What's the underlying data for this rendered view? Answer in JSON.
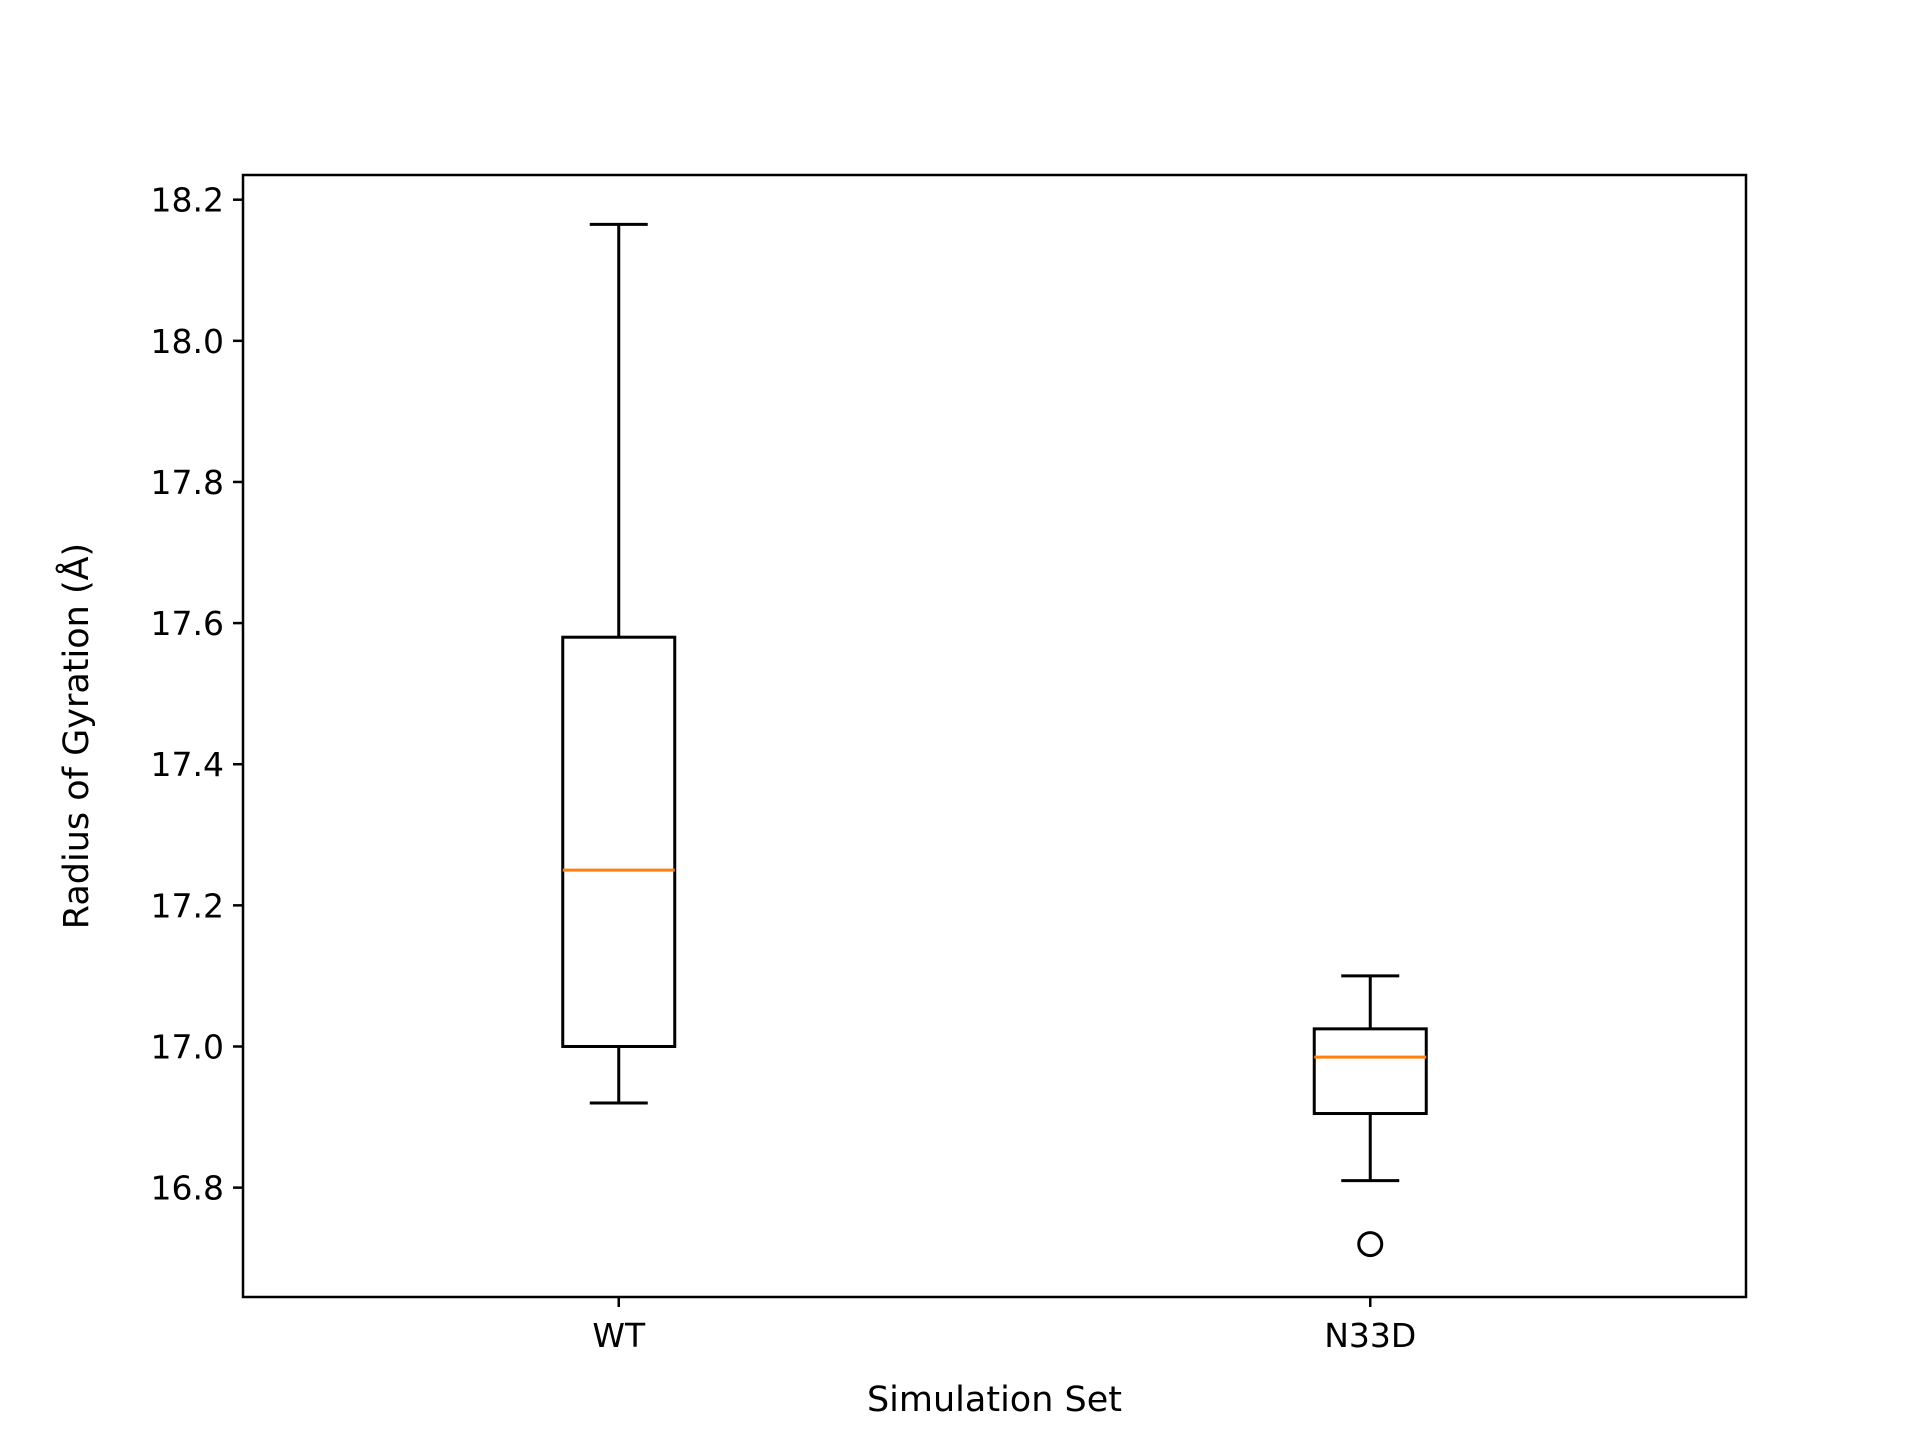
{
  "chart_data": {
    "type": "box",
    "title": "",
    "xlabel": "Simulation Set",
    "ylabel": "Radius of Gyration (Å)",
    "ylim": [
      16.645,
      18.235
    ],
    "yticks": [
      16.8,
      17.0,
      17.2,
      17.4,
      17.6,
      17.8,
      18.0,
      18.2
    ],
    "ytick_labels": [
      "16.8",
      "17.0",
      "17.2",
      "17.4",
      "17.6",
      "17.8",
      "18.0",
      "18.2"
    ],
    "grid": false,
    "categories": [
      "WT",
      "N33D"
    ],
    "boxes": [
      {
        "name": "WT",
        "whisker_low": 16.92,
        "q1": 17.0,
        "median": 17.25,
        "q3": 17.58,
        "whisker_high": 18.165,
        "outliers": []
      },
      {
        "name": "N33D",
        "whisker_low": 16.81,
        "q1": 16.905,
        "median": 16.985,
        "q3": 17.025,
        "whisker_high": 17.1,
        "outliers": [
          16.72
        ]
      }
    ],
    "colors": {
      "box": "#000000",
      "median": "#ff7f0e"
    }
  }
}
